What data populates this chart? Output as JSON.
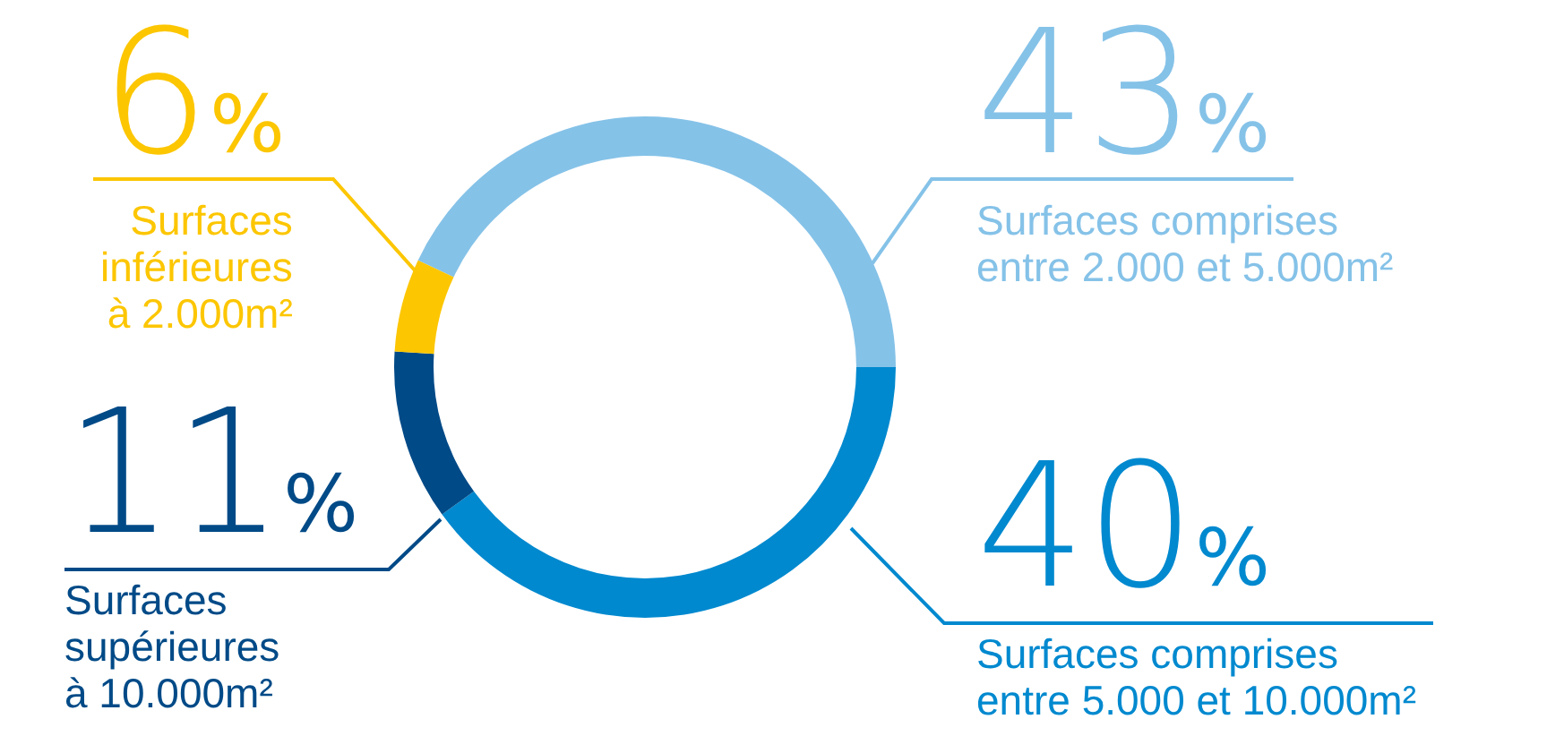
{
  "chart_data": {
    "type": "donut",
    "categories": [
      "Surfaces comprises\nentre 2.000 et 5.000m²",
      "Surfaces comprises\nentre 5.000 et 10.000m²",
      "Surfaces\nsupérieures\nà 10.000m²",
      "Surfaces\ninférieures\nà 2.000m²"
    ],
    "values": [
      43,
      40,
      11,
      6
    ],
    "colors": [
      "#85c2e8",
      "#0089cf",
      "#004a87",
      "#fcc600"
    ],
    "value_labels": [
      "43%",
      "40%",
      "11%",
      "6%"
    ]
  }
}
